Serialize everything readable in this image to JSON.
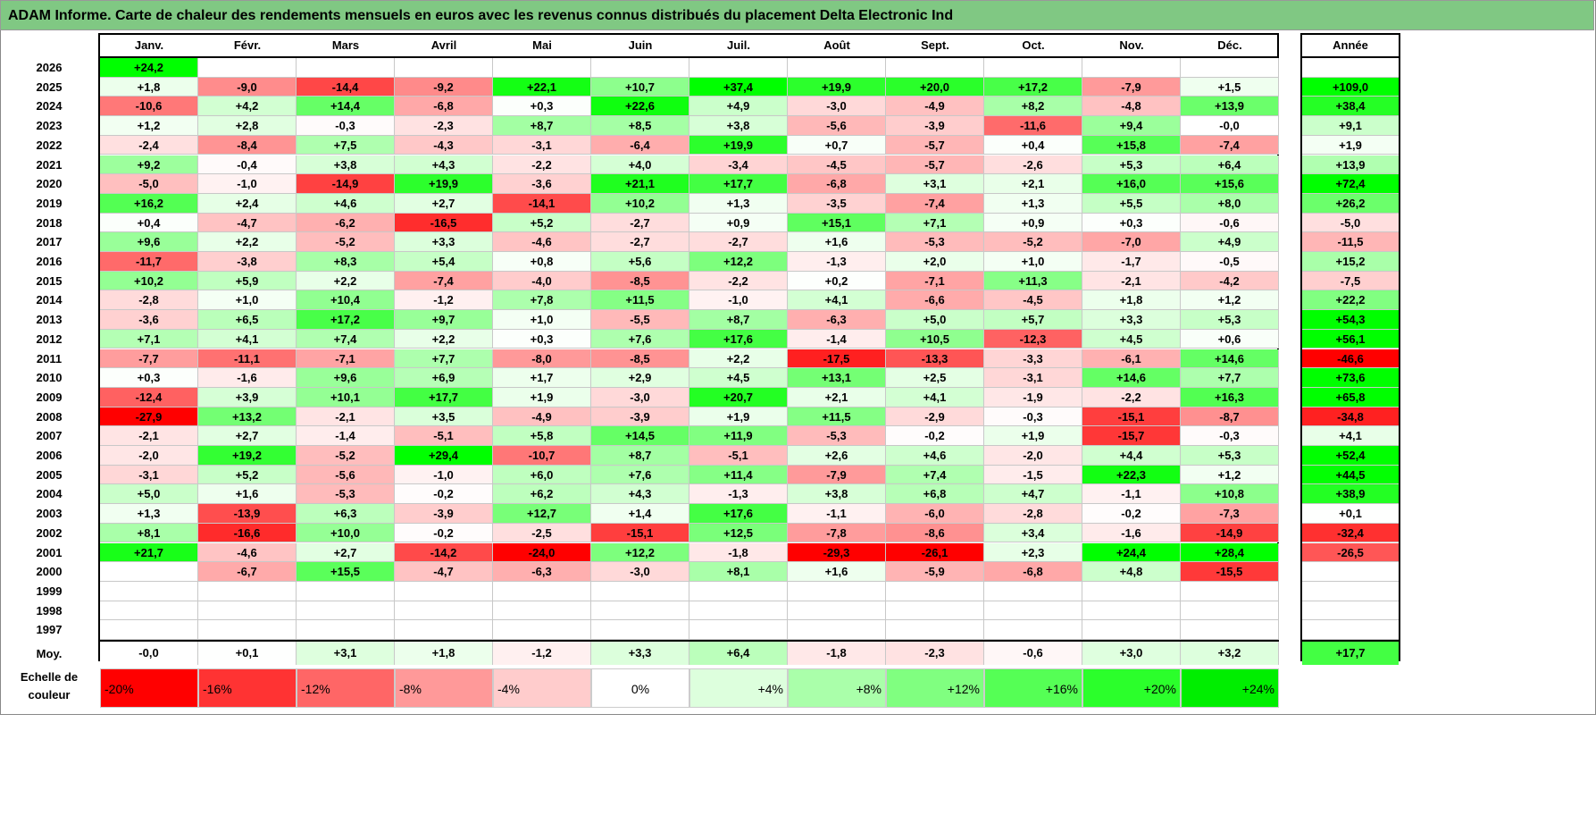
{
  "title": "ADAM Informe. Carte de chaleur des rendements mensuels en euros avec les revenus connus distribués du placement Delta Electronic Ind",
  "chart_data": {
    "type": "heatmap",
    "title": "ADAM Informe. Carte de chaleur des rendements mensuels en euros avec les revenus connus distribués du placement Delta Electronic Ind",
    "months": [
      "Janv.",
      "Févr.",
      "Mars",
      "Avril",
      "Mai",
      "Juin",
      "Juil.",
      "Août",
      "Sept.",
      "Oct.",
      "Nov.",
      "Déc."
    ],
    "year_header": "Année",
    "avg_label": "Moy.",
    "rows": [
      {
        "year": "2026",
        "values": [
          "+24,2",
          "",
          "",
          "",
          "",
          "",
          "",
          "",
          "",
          "",
          "",
          ""
        ],
        "total": ""
      },
      {
        "year": "2025",
        "values": [
          "+1,8",
          "-9,0",
          "-14,4",
          "-9,2",
          "+22,1",
          "+10,7",
          "+37,4",
          "+19,9",
          "+20,0",
          "+17,2",
          "-7,9",
          "+1,5"
        ],
        "total": "+109,0"
      },
      {
        "year": "2024",
        "values": [
          "-10,6",
          "+4,2",
          "+14,4",
          "-6,8",
          "+0,3",
          "+22,6",
          "+4,9",
          "-3,0",
          "-4,9",
          "+8,2",
          "-4,8",
          "+13,9"
        ],
        "total": "+38,4"
      },
      {
        "year": "2023",
        "values": [
          "+1,2",
          "+2,8",
          "-0,3",
          "-2,3",
          "+8,7",
          "+8,5",
          "+3,8",
          "-5,6",
          "-3,9",
          "-11,6",
          "+9,4",
          "-0,0"
        ],
        "total": "+9,1"
      },
      {
        "year": "2022",
        "values": [
          "-2,4",
          "-8,4",
          "+7,5",
          "-4,3",
          "-3,1",
          "-6,4",
          "+19,9",
          "+0,7",
          "-5,7",
          "+0,4",
          "+15,8",
          "-7,4"
        ],
        "total": "+1,9"
      },
      {
        "year": "2021",
        "values": [
          "+9,2",
          "-0,4",
          "+3,8",
          "+4,3",
          "-2,2",
          "+4,0",
          "-3,4",
          "-4,5",
          "-5,7",
          "-2,6",
          "+5,3",
          "+6,4"
        ],
        "total": "+13,9"
      },
      {
        "year": "2020",
        "values": [
          "-5,0",
          "-1,0",
          "-14,9",
          "+19,9",
          "-3,6",
          "+21,1",
          "+17,7",
          "-6,8",
          "+3,1",
          "+2,1",
          "+16,0",
          "+15,6"
        ],
        "total": "+72,4"
      },
      {
        "year": "2019",
        "values": [
          "+16,2",
          "+2,4",
          "+4,6",
          "+2,7",
          "-14,1",
          "+10,2",
          "+1,3",
          "-3,5",
          "-7,4",
          "+1,3",
          "+5,5",
          "+8,0"
        ],
        "total": "+26,2"
      },
      {
        "year": "2018",
        "values": [
          "+0,4",
          "-4,7",
          "-6,2",
          "-16,5",
          "+5,2",
          "-2,7",
          "+0,9",
          "+15,1",
          "+7,1",
          "+0,9",
          "+0,3",
          "-0,6"
        ],
        "total": "-5,0"
      },
      {
        "year": "2017",
        "values": [
          "+9,6",
          "+2,2",
          "-5,2",
          "+3,3",
          "-4,6",
          "-2,7",
          "-2,7",
          "+1,6",
          "-5,3",
          "-5,2",
          "-7,0",
          "+4,9"
        ],
        "total": "-11,5"
      },
      {
        "year": "2016",
        "values": [
          "-11,7",
          "-3,8",
          "+8,3",
          "+5,4",
          "+0,8",
          "+5,6",
          "+12,2",
          "-1,3",
          "+2,0",
          "+1,0",
          "-1,7",
          "-0,5"
        ],
        "total": "+15,2"
      },
      {
        "year": "2015",
        "values": [
          "+10,2",
          "+5,9",
          "+2,2",
          "-7,4",
          "-4,0",
          "-8,5",
          "-2,2",
          "+0,2",
          "-7,1",
          "+11,3",
          "-2,1",
          "-4,2"
        ],
        "total": "-7,5"
      },
      {
        "year": "2014",
        "values": [
          "-2,8",
          "+1,0",
          "+10,4",
          "-1,2",
          "+7,8",
          "+11,5",
          "-1,0",
          "+4,1",
          "-6,6",
          "-4,5",
          "+1,8",
          "+1,2"
        ],
        "total": "+22,2"
      },
      {
        "year": "2013",
        "values": [
          "-3,6",
          "+6,5",
          "+17,2",
          "+9,7",
          "+1,0",
          "-5,5",
          "+8,7",
          "-6,3",
          "+5,0",
          "+5,7",
          "+3,3",
          "+5,3"
        ],
        "total": "+54,3"
      },
      {
        "year": "2012",
        "values": [
          "+7,1",
          "+4,1",
          "+7,4",
          "+2,2",
          "+0,3",
          "+7,6",
          "+17,6",
          "-1,4",
          "+10,5",
          "-12,3",
          "+4,5",
          "+0,6"
        ],
        "total": "+56,1"
      },
      {
        "year": "2011",
        "values": [
          "-7,7",
          "-11,1",
          "-7,1",
          "+7,7",
          "-8,0",
          "-8,5",
          "+2,2",
          "-17,5",
          "-13,3",
          "-3,3",
          "-6,1",
          "+14,6"
        ],
        "total": "-46,6"
      },
      {
        "year": "2010",
        "values": [
          "+0,3",
          "-1,6",
          "+9,6",
          "+6,9",
          "+1,7",
          "+2,9",
          "+4,5",
          "+13,1",
          "+2,5",
          "-3,1",
          "+14,6",
          "+7,7"
        ],
        "total": "+73,6"
      },
      {
        "year": "2009",
        "values": [
          "-12,4",
          "+3,9",
          "+10,1",
          "+17,7",
          "+1,9",
          "-3,0",
          "+20,7",
          "+2,1",
          "+4,1",
          "-1,9",
          "-2,2",
          "+16,3"
        ],
        "total": "+65,8"
      },
      {
        "year": "2008",
        "values": [
          "-27,9",
          "+13,2",
          "-2,1",
          "+3,5",
          "-4,9",
          "-3,9",
          "+1,9",
          "+11,5",
          "-2,9",
          "-0,3",
          "-15,1",
          "-8,7"
        ],
        "total": "-34,8"
      },
      {
        "year": "2007",
        "values": [
          "-2,1",
          "+2,7",
          "-1,4",
          "-5,1",
          "+5,8",
          "+14,5",
          "+11,9",
          "-5,3",
          "-0,2",
          "+1,9",
          "-15,7",
          "-0,3"
        ],
        "total": "+4,1"
      },
      {
        "year": "2006",
        "values": [
          "-2,0",
          "+19,2",
          "-5,2",
          "+29,4",
          "-10,7",
          "+8,7",
          "-5,1",
          "+2,6",
          "+4,6",
          "-2,0",
          "+4,4",
          "+5,3"
        ],
        "total": "+52,4"
      },
      {
        "year": "2005",
        "values": [
          "-3,1",
          "+5,2",
          "-5,6",
          "-1,0",
          "+6,0",
          "+7,6",
          "+11,4",
          "-7,9",
          "+7,4",
          "-1,5",
          "+22,3",
          "+1,2"
        ],
        "total": "+44,5"
      },
      {
        "year": "2004",
        "values": [
          "+5,0",
          "+1,6",
          "-5,3",
          "-0,2",
          "+6,2",
          "+4,3",
          "-1,3",
          "+3,8",
          "+6,8",
          "+4,7",
          "-1,1",
          "+10,8"
        ],
        "total": "+38,9"
      },
      {
        "year": "2003",
        "values": [
          "+1,3",
          "-13,9",
          "+6,3",
          "-3,9",
          "+12,7",
          "+1,4",
          "+17,6",
          "-1,1",
          "-6,0",
          "-2,8",
          "-0,2",
          "-7,3"
        ],
        "total": "+0,1"
      },
      {
        "year": "2002",
        "values": [
          "+8,1",
          "-16,6",
          "+10,0",
          "-0,2",
          "-2,5",
          "-15,1",
          "+12,5",
          "-7,8",
          "-8,6",
          "+3,4",
          "-1,6",
          "-14,9"
        ],
        "total": "-32,4"
      },
      {
        "year": "2001",
        "values": [
          "+21,7",
          "-4,6",
          "+2,7",
          "-14,2",
          "-24,0",
          "+12,2",
          "-1,8",
          "-29,3",
          "-26,1",
          "+2,3",
          "+24,4",
          "+28,4"
        ],
        "total": "-26,5"
      },
      {
        "year": "2000",
        "values": [
          "",
          "-6,7",
          "+15,5",
          "-4,7",
          "-6,3",
          "-3,0",
          "+8,1",
          "+1,6",
          "-5,9",
          "-6,8",
          "+4,8",
          "-15,5"
        ],
        "total": ""
      },
      {
        "year": "1999",
        "values": [
          "",
          "",
          "",
          "",
          "",
          "",
          "",
          "",
          "",
          "",
          "",
          ""
        ],
        "total": ""
      },
      {
        "year": "1998",
        "values": [
          "",
          "",
          "",
          "",
          "",
          "",
          "",
          "",
          "",
          "",
          "",
          ""
        ],
        "total": ""
      },
      {
        "year": "1997",
        "values": [
          "",
          "",
          "",
          "",
          "",
          "",
          "",
          "",
          "",
          "",
          "",
          ""
        ],
        "total": ""
      }
    ],
    "averages": {
      "values": [
        "-0,0",
        "+0,1",
        "+3,1",
        "+1,8",
        "-1,2",
        "+3,3",
        "+6,4",
        "-1,8",
        "-2,3",
        "-0,6",
        "+3,0",
        "+3,2"
      ],
      "total": "+17,7"
    },
    "legend": {
      "label": "Echelle de couleur",
      "steps": [
        "-20%",
        "-16%",
        "-12%",
        "-8%",
        "-4%",
        "0%",
        "+4%",
        "+8%",
        "+12%",
        "+16%",
        "+20%",
        "+24%"
      ],
      "step_values": [
        -20,
        -16,
        -12,
        -8,
        -4,
        0,
        4,
        8,
        12,
        16,
        20,
        24
      ],
      "colors": [
        "#ff0000",
        "#ff3333",
        "#ff6666",
        "#ff9999",
        "#ffcccc",
        "#ffffff",
        "#ddffdd",
        "#aaffaa",
        "#80ff80",
        "#55ff55",
        "#2bff2b",
        "#00ee00"
      ]
    }
  }
}
